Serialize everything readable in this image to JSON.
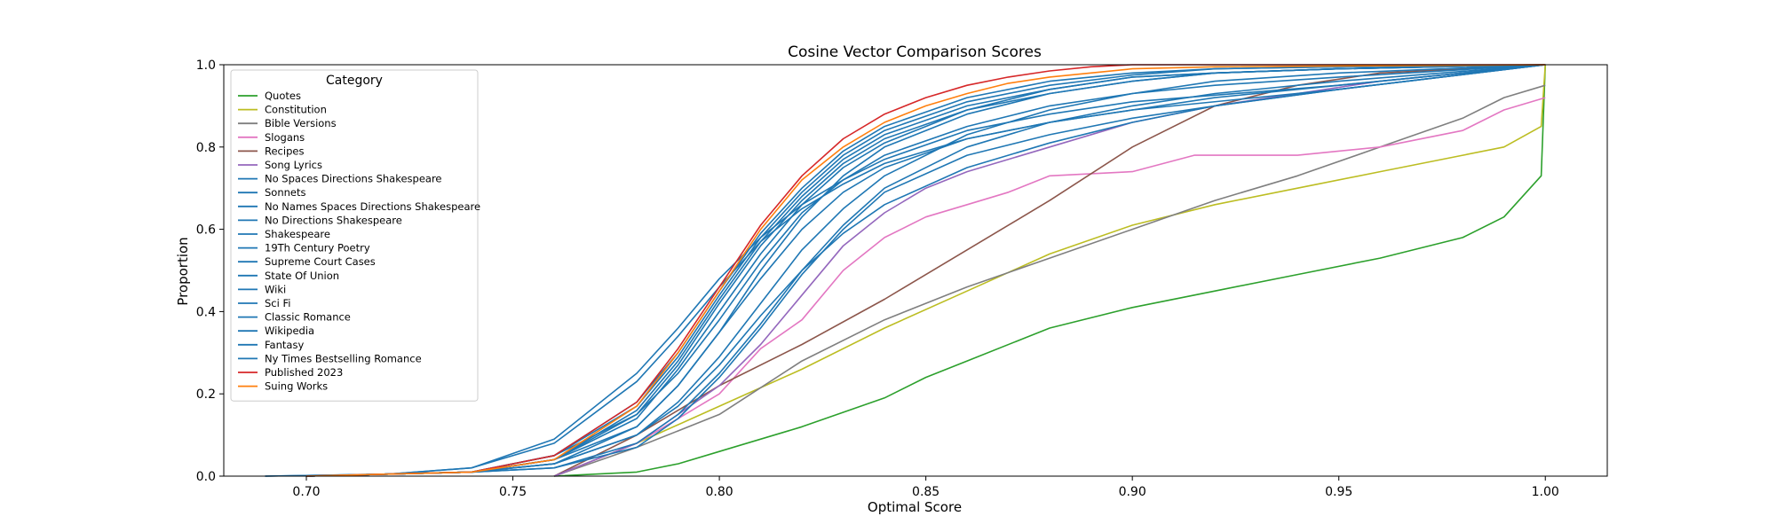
{
  "chart_data": {
    "type": "line",
    "subtype": "empirical-cdf-step",
    "title": "Cosine Vector Comparison Scores",
    "xlabel": "Optimal Score",
    "ylabel": "Proportion",
    "xlim": [
      0.68,
      1.015
    ],
    "ylim": [
      0,
      1
    ],
    "xticks": [
      0.7,
      0.75,
      0.8,
      0.85,
      0.9,
      0.95,
      1.0
    ],
    "xtick_labels": [
      "0.70",
      "0.75",
      "0.80",
      "0.85",
      "0.90",
      "0.95",
      "1.00"
    ],
    "yticks": [
      0,
      0.2,
      0.4,
      0.6,
      0.8,
      1.0
    ],
    "ytick_labels": [
      "0.0",
      "0.2",
      "0.4",
      "0.6",
      "0.8",
      "1.0"
    ],
    "grid": false,
    "legend": {
      "title": "Category",
      "placement": "upper-left"
    },
    "series": [
      {
        "name": "Quotes",
        "color": "#2ca02c",
        "x": [
          0.76,
          0.78,
          0.79,
          0.8,
          0.82,
          0.84,
          0.85,
          0.86,
          0.88,
          0.9,
          0.92,
          0.94,
          0.96,
          0.98,
          0.99,
          0.999,
          1.0
        ],
        "y": [
          0,
          0.01,
          0.03,
          0.06,
          0.12,
          0.19,
          0.24,
          0.28,
          0.36,
          0.41,
          0.45,
          0.49,
          0.53,
          0.58,
          0.63,
          0.73,
          1.0
        ]
      },
      {
        "name": "Constitution",
        "color": "#bcbd22",
        "x": [
          0.76,
          0.78,
          0.8,
          0.82,
          0.84,
          0.86,
          0.88,
          0.9,
          0.92,
          0.94,
          0.96,
          0.98,
          0.99,
          0.999,
          1.0
        ],
        "y": [
          0,
          0.08,
          0.17,
          0.26,
          0.36,
          0.45,
          0.54,
          0.61,
          0.66,
          0.7,
          0.74,
          0.78,
          0.8,
          0.85,
          1.0
        ]
      },
      {
        "name": "Bible Versions",
        "color": "#7f7f7f",
        "x": [
          0.76,
          0.78,
          0.8,
          0.82,
          0.84,
          0.86,
          0.88,
          0.9,
          0.92,
          0.94,
          0.96,
          0.98,
          0.99,
          1.0
        ],
        "y": [
          0,
          0.07,
          0.15,
          0.28,
          0.38,
          0.46,
          0.53,
          0.6,
          0.67,
          0.73,
          0.8,
          0.87,
          0.92,
          0.95
        ]
      },
      {
        "name": "Slogans",
        "color": "#e377c2",
        "x": [
          0.76,
          0.78,
          0.8,
          0.81,
          0.82,
          0.83,
          0.84,
          0.85,
          0.86,
          0.87,
          0.88,
          0.9,
          0.915,
          0.94,
          0.96,
          0.98,
          0.99,
          1.0
        ],
        "y": [
          0,
          0.08,
          0.2,
          0.31,
          0.38,
          0.5,
          0.58,
          0.63,
          0.66,
          0.69,
          0.73,
          0.74,
          0.78,
          0.78,
          0.8,
          0.84,
          0.89,
          0.92
        ]
      },
      {
        "name": "Recipes",
        "color": "#8c564b",
        "x": [
          0.76,
          0.78,
          0.8,
          0.82,
          0.84,
          0.86,
          0.88,
          0.9,
          0.92,
          0.94,
          0.96,
          0.98,
          1.0
        ],
        "y": [
          0,
          0.1,
          0.22,
          0.32,
          0.43,
          0.55,
          0.67,
          0.8,
          0.9,
          0.95,
          0.98,
          0.99,
          1.0
        ]
      },
      {
        "name": "Song Lyrics",
        "color": "#9467bd",
        "x": [
          0.76,
          0.78,
          0.8,
          0.81,
          0.82,
          0.83,
          0.84,
          0.85,
          0.86,
          0.88,
          0.9,
          0.92,
          0.94,
          0.96,
          0.98,
          1.0
        ],
        "y": [
          0,
          0.08,
          0.22,
          0.32,
          0.44,
          0.56,
          0.64,
          0.7,
          0.74,
          0.8,
          0.86,
          0.9,
          0.93,
          0.96,
          0.98,
          1.0
        ]
      },
      {
        "name": "No Spaces Directions Shakespeare",
        "color": "#1f77b4",
        "x": [
          0.7,
          0.74,
          0.76,
          0.78,
          0.79,
          0.8,
          0.81,
          0.82,
          0.83,
          0.84,
          0.86,
          0.88,
          0.9,
          0.92,
          0.95,
          1.0
        ],
        "y": [
          0,
          0.01,
          0.04,
          0.12,
          0.22,
          0.35,
          0.5,
          0.63,
          0.73,
          0.8,
          0.88,
          0.93,
          0.96,
          0.98,
          0.99,
          1.0
        ]
      },
      {
        "name": "Sonnets",
        "color": "#1f77b4",
        "x": [
          0.7,
          0.74,
          0.76,
          0.78,
          0.79,
          0.8,
          0.81,
          0.82,
          0.83,
          0.84,
          0.86,
          0.88,
          0.9,
          0.92,
          0.95,
          1.0
        ],
        "y": [
          0,
          0.01,
          0.05,
          0.15,
          0.25,
          0.38,
          0.52,
          0.64,
          0.72,
          0.78,
          0.85,
          0.9,
          0.93,
          0.95,
          0.97,
          1.0
        ]
      },
      {
        "name": "No Names Spaces Directions Shakespeare",
        "color": "#1f77b4",
        "x": [
          0.7,
          0.74,
          0.76,
          0.78,
          0.79,
          0.8,
          0.81,
          0.82,
          0.83,
          0.84,
          0.86,
          0.88,
          0.9,
          0.92,
          0.95,
          1.0
        ],
        "y": [
          0,
          0.01,
          0.03,
          0.1,
          0.18,
          0.29,
          0.42,
          0.55,
          0.65,
          0.73,
          0.83,
          0.89,
          0.93,
          0.96,
          0.98,
          1.0
        ]
      },
      {
        "name": "No Directions Shakespeare",
        "color": "#1f77b4",
        "x": [
          0.7,
          0.74,
          0.76,
          0.78,
          0.79,
          0.8,
          0.81,
          0.82,
          0.83,
          0.84,
          0.86,
          0.88,
          0.9,
          0.92,
          0.95,
          1.0
        ],
        "y": [
          0,
          0.01,
          0.02,
          0.08,
          0.15,
          0.25,
          0.37,
          0.5,
          0.61,
          0.7,
          0.8,
          0.86,
          0.9,
          0.93,
          0.96,
          1.0
        ]
      },
      {
        "name": "Shakespeare",
        "color": "#1f77b4",
        "x": [
          0.7,
          0.74,
          0.76,
          0.78,
          0.79,
          0.8,
          0.81,
          0.82,
          0.83,
          0.84,
          0.86,
          0.88,
          0.9,
          0.92,
          0.95,
          1.0
        ],
        "y": [
          0,
          0.01,
          0.02,
          0.07,
          0.14,
          0.24,
          0.36,
          0.49,
          0.6,
          0.69,
          0.78,
          0.83,
          0.87,
          0.9,
          0.94,
          1.0
        ]
      },
      {
        "name": "19Th Century Poetry",
        "color": "#1f77b4",
        "x": [
          0.7,
          0.74,
          0.76,
          0.78,
          0.79,
          0.8,
          0.81,
          0.82,
          0.83,
          0.84,
          0.86,
          0.88,
          0.9,
          0.92,
          0.95,
          1.0
        ],
        "y": [
          0,
          0.01,
          0.03,
          0.1,
          0.17,
          0.27,
          0.39,
          0.5,
          0.59,
          0.66,
          0.75,
          0.81,
          0.86,
          0.9,
          0.94,
          1.0
        ]
      },
      {
        "name": "Supreme Court Cases",
        "color": "#1f77b4",
        "x": [
          0.7,
          0.74,
          0.76,
          0.78,
          0.79,
          0.8,
          0.81,
          0.82,
          0.83,
          0.84,
          0.86,
          0.88,
          0.9,
          0.92,
          0.95,
          1.0
        ],
        "y": [
          0,
          0.01,
          0.03,
          0.12,
          0.22,
          0.35,
          0.48,
          0.6,
          0.69,
          0.75,
          0.82,
          0.86,
          0.89,
          0.92,
          0.95,
          1.0
        ]
      },
      {
        "name": "State Of Union",
        "color": "#1f77b4",
        "x": [
          0.7,
          0.74,
          0.76,
          0.78,
          0.79,
          0.8,
          0.81,
          0.82,
          0.83,
          0.84,
          0.86,
          0.88,
          0.9,
          0.92,
          0.95,
          1.0
        ],
        "y": [
          0,
          0.01,
          0.04,
          0.14,
          0.26,
          0.4,
          0.54,
          0.66,
          0.75,
          0.81,
          0.89,
          0.94,
          0.97,
          0.98,
          0.99,
          1.0
        ]
      },
      {
        "name": "Wiki",
        "color": "#1f77b4",
        "x": [
          0.69,
          0.72,
          0.74,
          0.76,
          0.78,
          0.79,
          0.8,
          0.81,
          0.82,
          0.83,
          0.84,
          0.86,
          0.88,
          0.9,
          0.95,
          1.0
        ],
        "y": [
          0,
          0.005,
          0.02,
          0.09,
          0.25,
          0.36,
          0.48,
          0.58,
          0.66,
          0.72,
          0.77,
          0.84,
          0.88,
          0.91,
          0.95,
          1.0
        ]
      },
      {
        "name": "Sci Fi",
        "color": "#1f77b4",
        "x": [
          0.7,
          0.74,
          0.76,
          0.78,
          0.79,
          0.8,
          0.81,
          0.82,
          0.83,
          0.84,
          0.86,
          0.88,
          0.9,
          0.92,
          0.95,
          1.0
        ],
        "y": [
          0,
          0.01,
          0.05,
          0.18,
          0.3,
          0.45,
          0.59,
          0.7,
          0.79,
          0.85,
          0.92,
          0.96,
          0.98,
          0.99,
          0.995,
          1.0
        ]
      },
      {
        "name": "Classic Romance",
        "color": "#1f77b4",
        "x": [
          0.7,
          0.74,
          0.76,
          0.78,
          0.79,
          0.8,
          0.81,
          0.82,
          0.83,
          0.84,
          0.86,
          0.88,
          0.9,
          0.92,
          0.95,
          1.0
        ],
        "y": [
          0,
          0.01,
          0.04,
          0.16,
          0.28,
          0.43,
          0.57,
          0.68,
          0.77,
          0.83,
          0.9,
          0.94,
          0.97,
          0.98,
          0.99,
          1.0
        ]
      },
      {
        "name": "Wikipedia",
        "color": "#1f77b4",
        "x": [
          0.69,
          0.72,
          0.74,
          0.76,
          0.78,
          0.79,
          0.8,
          0.81,
          0.82,
          0.83,
          0.84,
          0.86,
          0.88,
          0.9,
          0.95,
          1.0
        ],
        "y": [
          0,
          0.005,
          0.02,
          0.08,
          0.23,
          0.34,
          0.46,
          0.57,
          0.65,
          0.71,
          0.76,
          0.82,
          0.86,
          0.89,
          0.94,
          1.0
        ]
      },
      {
        "name": "Fantasy",
        "color": "#1f77b4",
        "x": [
          0.7,
          0.74,
          0.76,
          0.78,
          0.79,
          0.8,
          0.81,
          0.82,
          0.83,
          0.84,
          0.86,
          0.88,
          0.9,
          0.92,
          0.95,
          1.0
        ],
        "y": [
          0,
          0.01,
          0.05,
          0.17,
          0.29,
          0.44,
          0.58,
          0.69,
          0.78,
          0.84,
          0.91,
          0.95,
          0.975,
          0.99,
          0.995,
          1.0
        ]
      },
      {
        "name": "Ny Times Bestselling Romance",
        "color": "#1f77b4",
        "x": [
          0.7,
          0.74,
          0.76,
          0.78,
          0.79,
          0.8,
          0.81,
          0.82,
          0.83,
          0.84,
          0.86,
          0.88,
          0.9,
          0.92,
          0.95,
          1.0
        ],
        "y": [
          0,
          0.01,
          0.04,
          0.15,
          0.27,
          0.42,
          0.56,
          0.67,
          0.76,
          0.82,
          0.89,
          0.93,
          0.96,
          0.98,
          0.99,
          1.0
        ]
      },
      {
        "name": "Published 2023",
        "color": "#d62728",
        "x": [
          0.7,
          0.74,
          0.76,
          0.78,
          0.79,
          0.8,
          0.81,
          0.82,
          0.83,
          0.84,
          0.85,
          0.86,
          0.87,
          0.88,
          0.89,
          0.9,
          1.0
        ],
        "y": [
          0,
          0.01,
          0.05,
          0.18,
          0.31,
          0.46,
          0.61,
          0.73,
          0.82,
          0.88,
          0.92,
          0.95,
          0.97,
          0.985,
          0.995,
          1.0,
          1.0
        ]
      },
      {
        "name": "Suing Works",
        "color": "#ff7f0e",
        "x": [
          0.7,
          0.74,
          0.76,
          0.78,
          0.79,
          0.8,
          0.81,
          0.82,
          0.83,
          0.84,
          0.85,
          0.86,
          0.87,
          0.88,
          0.9,
          0.92,
          1.0
        ],
        "y": [
          0,
          0.01,
          0.04,
          0.17,
          0.3,
          0.45,
          0.6,
          0.72,
          0.8,
          0.86,
          0.9,
          0.93,
          0.955,
          0.97,
          0.99,
          0.995,
          1.0
        ]
      }
    ]
  }
}
